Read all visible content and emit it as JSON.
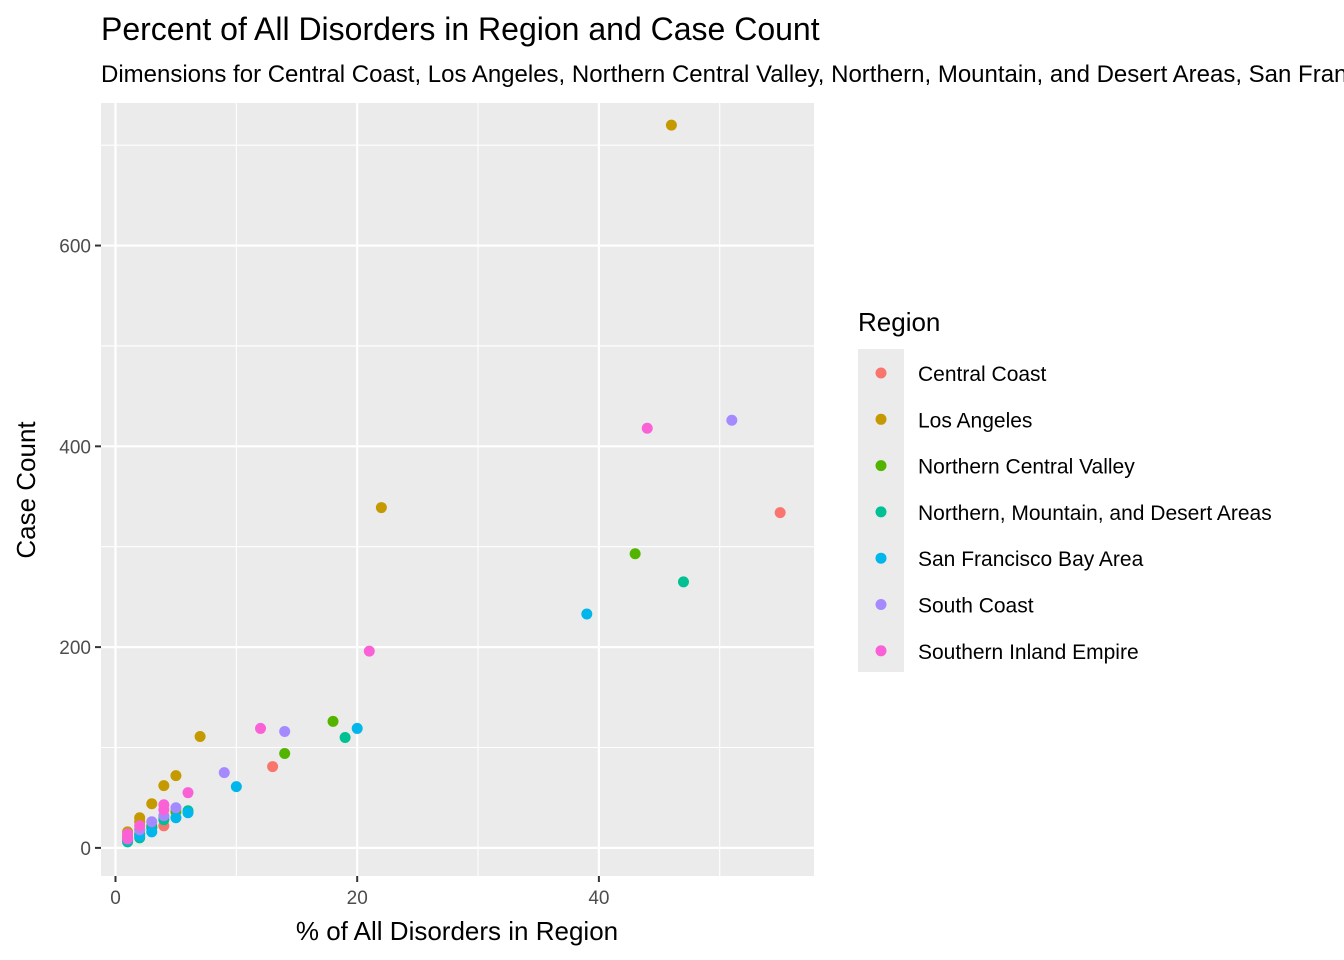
{
  "chart_data": {
    "type": "scatter",
    "title": "Percent of All Disorders in Region and Case Count",
    "subtitle": "Dimensions for Central Coast, Los Angeles, Northern Central Valley, Northern, Mountain, and Desert Areas, San Francisco Bay Area, South Coast, Southern Inland Empire",
    "xlabel": "% of All Disorders in Region",
    "ylabel": "Case Count",
    "xlim": [
      -1.2,
      57.8
    ],
    "ylim": [
      -28,
      742
    ],
    "x_ticks": [
      0,
      20,
      40
    ],
    "y_ticks": [
      0,
      200,
      400,
      600
    ],
    "x_tick_labels": [
      "0",
      "20",
      "40"
    ],
    "y_tick_labels": [
      "0",
      "200",
      "400",
      "600"
    ],
    "grid": true,
    "legend": {
      "title": "Region",
      "placement": "right"
    },
    "series": [
      {
        "name": "Central Coast",
        "color": "#F8766D",
        "points": [
          [
            55,
            334
          ],
          [
            13,
            81
          ],
          [
            4,
            22
          ],
          [
            4,
            30
          ],
          [
            2,
            18
          ],
          [
            1,
            10
          ],
          [
            1,
            7
          ],
          [
            3,
            20
          ]
        ]
      },
      {
        "name": "Los Angeles",
        "color": "#C49A00",
        "points": [
          [
            46,
            720
          ],
          [
            22,
            339
          ],
          [
            7,
            111
          ],
          [
            5,
            72
          ],
          [
            4,
            62
          ],
          [
            3,
            44
          ],
          [
            2,
            30
          ],
          [
            2,
            26
          ],
          [
            1,
            16
          ],
          [
            1,
            12
          ]
        ]
      },
      {
        "name": "Northern Central Valley",
        "color": "#53B400",
        "points": [
          [
            43,
            293
          ],
          [
            18,
            126
          ],
          [
            14,
            94
          ],
          [
            5,
            36
          ],
          [
            3,
            22
          ],
          [
            2,
            14
          ],
          [
            1,
            8
          ]
        ]
      },
      {
        "name": "Northern, Mountain, and Desert Areas",
        "color": "#00C094",
        "points": [
          [
            47,
            265
          ],
          [
            19,
            110
          ],
          [
            6,
            37
          ],
          [
            4,
            28
          ],
          [
            3,
            20
          ],
          [
            2,
            10
          ],
          [
            1,
            6
          ]
        ]
      },
      {
        "name": "San Francisco Bay Area",
        "color": "#00B6EB",
        "points": [
          [
            39,
            233
          ],
          [
            20,
            119
          ],
          [
            10,
            61
          ],
          [
            6,
            35
          ],
          [
            5,
            30
          ],
          [
            3,
            16
          ],
          [
            2,
            12
          ],
          [
            1,
            8
          ]
        ]
      },
      {
        "name": "South Coast",
        "color": "#A58AFF",
        "points": [
          [
            51,
            426
          ],
          [
            14,
            116
          ],
          [
            9,
            75
          ],
          [
            5,
            40
          ],
          [
            4,
            32
          ],
          [
            3,
            26
          ],
          [
            2,
            18
          ],
          [
            1,
            10
          ]
        ]
      },
      {
        "name": "Southern Inland Empire",
        "color": "#FB61D7",
        "points": [
          [
            44,
            418
          ],
          [
            21,
            196
          ],
          [
            12,
            119
          ],
          [
            6,
            55
          ],
          [
            4,
            43
          ],
          [
            4,
            38
          ],
          [
            2,
            22
          ],
          [
            1,
            14
          ],
          [
            1,
            9
          ]
        ]
      }
    ]
  }
}
